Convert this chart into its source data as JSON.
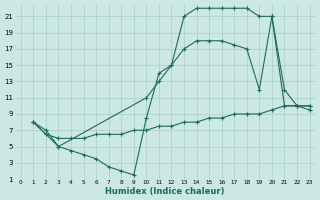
{
  "xlabel": "Humidex (Indice chaleur)",
  "bg_color": "#cce8e5",
  "line_color": "#1a6b5a",
  "grid_color": "#aaccc8",
  "xlim": [
    -0.5,
    23.5
  ],
  "ylim": [
    1,
    22.5
  ],
  "xticks": [
    0,
    1,
    2,
    3,
    4,
    5,
    6,
    7,
    8,
    9,
    10,
    11,
    12,
    13,
    14,
    15,
    16,
    17,
    18,
    19,
    20,
    21,
    22,
    23
  ],
  "yticks": [
    1,
    3,
    5,
    7,
    9,
    11,
    13,
    15,
    17,
    19,
    21
  ],
  "line1_x": [
    1,
    2,
    3,
    4,
    5,
    6,
    7,
    8,
    9,
    10,
    11,
    12,
    13,
    14,
    15,
    16,
    17,
    18,
    19,
    20,
    21,
    22,
    23
  ],
  "line1_y": [
    8,
    7,
    5,
    4.5,
    4,
    3.5,
    2.5,
    2,
    1.5,
    8.5,
    14,
    15,
    21,
    22,
    22,
    22,
    22,
    22,
    21,
    21,
    10,
    10,
    9.5
  ],
  "line2_x": [
    1,
    3,
    10,
    11,
    12,
    13,
    14,
    15,
    16,
    17,
    18,
    19,
    20,
    21,
    22,
    23
  ],
  "line2_y": [
    8,
    5,
    11,
    13,
    15,
    17,
    18,
    18,
    18,
    17.5,
    17,
    12,
    21,
    12,
    10,
    10
  ],
  "line3_x": [
    1,
    2,
    3,
    4,
    5,
    6,
    7,
    8,
    9,
    10,
    11,
    12,
    13,
    14,
    15,
    16,
    17,
    18,
    19,
    20,
    21,
    22,
    23
  ],
  "line3_y": [
    8,
    6.5,
    6,
    6,
    6,
    6.5,
    6.5,
    6.5,
    7,
    7,
    7.5,
    7.5,
    8,
    8,
    8.5,
    8.5,
    9,
    9,
    9,
    9.5,
    10,
    10,
    10
  ]
}
